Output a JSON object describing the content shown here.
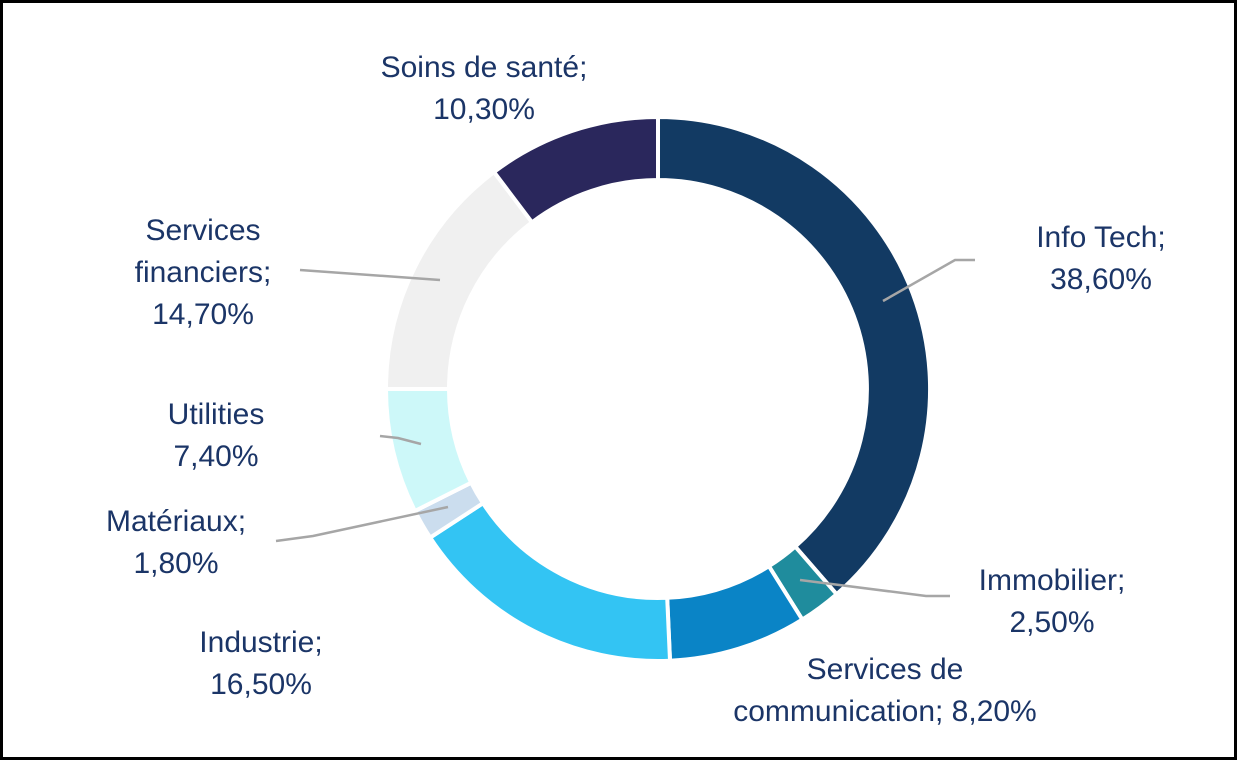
{
  "chart_data": {
    "type": "pie",
    "variant": "donut",
    "unit": "%",
    "decimal_separator": ",",
    "start_angle_deg": 0,
    "direction": "clockwise",
    "donut_inner_ratio": 0.77,
    "grid": false,
    "legend": "none (data labels with leader lines)",
    "text_color": "#1B3567",
    "leader_line_color": "#A6A6A6",
    "separator_color": "#FFFFFF",
    "slices": [
      {
        "id": "info-tech",
        "name": "Info Tech",
        "value": 38.6,
        "display_value": "38,60%",
        "label": "Info Tech;\n38,60%",
        "color": "#123A63"
      },
      {
        "id": "immobilier",
        "name": "Immobilier",
        "value": 2.5,
        "display_value": "2,50%",
        "label": "Immobilier;\n2,50%",
        "color": "#1F8C9D"
      },
      {
        "id": "services-communication",
        "name": "Services de communication",
        "value": 8.2,
        "display_value": "8,20%",
        "label": "Services de\ncommunication; 8,20%",
        "color": "#0A84C6"
      },
      {
        "id": "industrie",
        "name": "Industrie",
        "value": 16.5,
        "display_value": "16,50%",
        "label": "Industrie;\n16,50%",
        "color": "#33C4F3"
      },
      {
        "id": "materiaux",
        "name": "Matériaux",
        "value": 1.8,
        "display_value": "1,80%",
        "label": "Matériaux;\n1,80%",
        "color": "#CBDDEE"
      },
      {
        "id": "utilities",
        "name": "Utilities",
        "value": 7.4,
        "display_value": "7,40%",
        "label": "Utilities\n7,40%",
        "color": "#CDF8F9"
      },
      {
        "id": "services-financiers",
        "name": "Services financiers",
        "value": 14.7,
        "display_value": "14,70%",
        "label": "Services\nfinanciers;\n14,70%",
        "color": "#F0F0F0"
      },
      {
        "id": "soins-sante",
        "name": "Soins de santé",
        "value": 10.3,
        "display_value": "10,30%",
        "label": "Soins de santé;\n10,30%",
        "color": "#2A275C"
      }
    ]
  }
}
